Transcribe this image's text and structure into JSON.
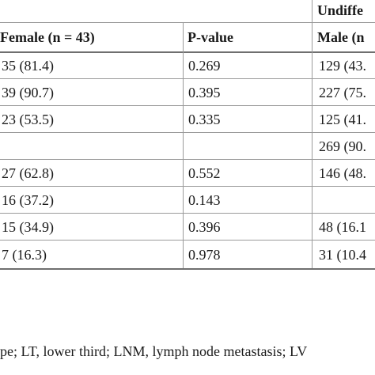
{
  "table": {
    "group_header": "Undiffe",
    "col_headers": [
      "Female (n = 43)",
      "P-value",
      "Male (n"
    ],
    "rows": [
      [
        "35 (81.4)",
        "0.269",
        "129 (43."
      ],
      [
        "39 (90.7)",
        "0.395",
        "227 (75."
      ],
      [
        "23 (53.5)",
        "0.335",
        "125 (41."
      ],
      [
        "",
        "",
        "269 (90."
      ],
      [
        "27 (62.8)",
        "0.552",
        "146 (48."
      ],
      [
        "16 (37.2)",
        "0.143",
        ""
      ],
      [
        "15 (34.9)",
        "0.396",
        "48 (16.1"
      ],
      [
        "7 (16.3)",
        "0.978",
        "31 (10.4"
      ]
    ]
  },
  "footnote": "pe; LT, lower third; LNM, lymph node metastasis; LV"
}
